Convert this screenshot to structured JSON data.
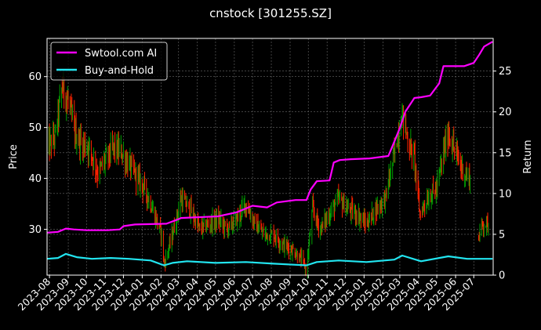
{
  "chart_data": {
    "type": "line",
    "title": "cnstock [301255.SZ]",
    "ylabel_left": "Price",
    "ylabel_right": "Return",
    "ylim_left": [
      21,
      67.5
    ],
    "ylim_right": [
      0,
      29
    ],
    "yticks_left": [
      30,
      40,
      50,
      60
    ],
    "yticks_right": [
      0,
      5,
      10,
      15,
      20,
      25
    ],
    "xlim": [
      "2023-07-28",
      "2025-08-02"
    ],
    "x_ticks": [
      "2023-08",
      "2023-09",
      "2023-10",
      "2023-11",
      "2023-12",
      "2024-01",
      "2024-02",
      "2024-03",
      "2024-04",
      "2024-05",
      "2024-06",
      "2024-07",
      "2024-08",
      "2024-09",
      "2024-10",
      "2024-11",
      "2024-12",
      "2025-01",
      "2025-02",
      "2025-03",
      "2025-04",
      "2025-05",
      "2025-06",
      "2025-07"
    ],
    "grid": true,
    "legend_position": "top-left",
    "colors": {
      "up": "#00a000",
      "down": "#ff2200",
      "ai": "#ff00ff",
      "hold": "#22e5f0",
      "grid": "#6a6a6a"
    },
    "price_path": [
      [
        "2023-07-28",
        46
      ],
      [
        "2023-08-10",
        48
      ],
      [
        "2023-08-22",
        58
      ],
      [
        "2023-09-01",
        55
      ],
      [
        "2023-09-12",
        49
      ],
      [
        "2023-09-22",
        47
      ],
      [
        "2023-10-06",
        46
      ],
      [
        "2023-10-20",
        41
      ],
      [
        "2023-11-03",
        44
      ],
      [
        "2023-11-15",
        46
      ],
      [
        "2023-11-28",
        45
      ],
      [
        "2023-12-08",
        43
      ],
      [
        "2023-12-20",
        41
      ],
      [
        "2024-01-05",
        38
      ],
      [
        "2024-01-18",
        34
      ],
      [
        "2024-02-02",
        29
      ],
      [
        "2024-02-06",
        23
      ],
      [
        "2024-02-20",
        29
      ],
      [
        "2024-03-05",
        36
      ],
      [
        "2024-03-20",
        34
      ],
      [
        "2024-04-05",
        30
      ],
      [
        "2024-04-20",
        31
      ],
      [
        "2024-05-05",
        32
      ],
      [
        "2024-05-20",
        30
      ],
      [
        "2024-06-05",
        32
      ],
      [
        "2024-06-20",
        35
      ],
      [
        "2024-07-05",
        31
      ],
      [
        "2024-07-20",
        29
      ],
      [
        "2024-08-05",
        29
      ],
      [
        "2024-08-20",
        27
      ],
      [
        "2024-09-05",
        26
      ],
      [
        "2024-09-20",
        24
      ],
      [
        "2024-09-28",
        22
      ],
      [
        "2024-10-08",
        34
      ],
      [
        "2024-10-20",
        30
      ],
      [
        "2024-11-05",
        33
      ],
      [
        "2024-11-20",
        36
      ],
      [
        "2024-12-05",
        34
      ],
      [
        "2024-12-20",
        33
      ],
      [
        "2025-01-05",
        31
      ],
      [
        "2025-01-20",
        34
      ],
      [
        "2025-02-05",
        36
      ],
      [
        "2025-02-20",
        45
      ],
      [
        "2025-03-05",
        53
      ],
      [
        "2025-03-15",
        47
      ],
      [
        "2025-03-25",
        44
      ],
      [
        "2025-04-03",
        33
      ],
      [
        "2025-04-15",
        36
      ],
      [
        "2025-05-01",
        38
      ],
      [
        "2025-05-12",
        45
      ],
      [
        "2025-05-20",
        49
      ],
      [
        "2025-06-01",
        45
      ],
      [
        "2025-06-15",
        41
      ],
      [
        "2025-06-25",
        40
      ],
      [
        "2025-06-28",
        null
      ],
      [
        "2025-07-08",
        28
      ],
      [
        "2025-07-15",
        31
      ],
      [
        "2025-07-25",
        31
      ]
    ],
    "series": [
      {
        "name": "Swtool.com AI",
        "values": [
          [
            "2023-07-28",
            5.2
          ],
          [
            "2023-08-15",
            5.3
          ],
          [
            "2023-08-28",
            5.7
          ],
          [
            "2023-09-10",
            5.6
          ],
          [
            "2023-10-01",
            5.5
          ],
          [
            "2023-11-05",
            5.5
          ],
          [
            "2023-11-25",
            5.6
          ],
          [
            "2023-12-01",
            6.0
          ],
          [
            "2023-12-20",
            6.2
          ],
          [
            "2024-02-10",
            6.3
          ],
          [
            "2024-02-28",
            6.8
          ],
          [
            "2024-03-05",
            7.0
          ],
          [
            "2024-05-05",
            7.2
          ],
          [
            "2024-06-05",
            7.7
          ],
          [
            "2024-07-01",
            8.5
          ],
          [
            "2024-07-25",
            8.3
          ],
          [
            "2024-08-10",
            8.9
          ],
          [
            "2024-09-10",
            9.2
          ],
          [
            "2024-09-28",
            9.2
          ],
          [
            "2024-10-05",
            10.5
          ],
          [
            "2024-10-15",
            11.5
          ],
          [
            "2024-11-05",
            11.6
          ],
          [
            "2024-11-12",
            13.8
          ],
          [
            "2024-11-22",
            14.1
          ],
          [
            "2024-12-10",
            14.2
          ],
          [
            "2025-01-10",
            14.3
          ],
          [
            "2025-02-10",
            14.6
          ],
          [
            "2025-02-18",
            16.0
          ],
          [
            "2025-03-01",
            18.0
          ],
          [
            "2025-03-10",
            20.0
          ],
          [
            "2025-03-25",
            21.7
          ],
          [
            "2025-04-05",
            21.8
          ],
          [
            "2025-04-20",
            22.0
          ],
          [
            "2025-05-05",
            23.5
          ],
          [
            "2025-05-12",
            25.6
          ],
          [
            "2025-06-15",
            25.6
          ],
          [
            "2025-07-01",
            26.0
          ],
          [
            "2025-07-10",
            27.0
          ],
          [
            "2025-07-18",
            28.0
          ],
          [
            "2025-08-01",
            28.6
          ]
        ]
      },
      {
        "name": "Buy-and-Hold",
        "values": [
          [
            "2023-07-28",
            2.0
          ],
          [
            "2023-08-15",
            2.1
          ],
          [
            "2023-08-28",
            2.6
          ],
          [
            "2023-09-15",
            2.2
          ],
          [
            "2023-10-10",
            2.0
          ],
          [
            "2023-11-10",
            2.1
          ],
          [
            "2023-12-10",
            2.0
          ],
          [
            "2024-01-15",
            1.8
          ],
          [
            "2024-02-06",
            1.2
          ],
          [
            "2024-02-20",
            1.5
          ],
          [
            "2024-03-15",
            1.7
          ],
          [
            "2024-05-01",
            1.5
          ],
          [
            "2024-06-20",
            1.6
          ],
          [
            "2024-08-05",
            1.4
          ],
          [
            "2024-09-28",
            1.2
          ],
          [
            "2024-10-15",
            1.6
          ],
          [
            "2024-11-20",
            1.8
          ],
          [
            "2025-01-05",
            1.6
          ],
          [
            "2025-02-20",
            1.9
          ],
          [
            "2025-03-05",
            2.4
          ],
          [
            "2025-04-05",
            1.7
          ],
          [
            "2025-05-20",
            2.3
          ],
          [
            "2025-06-20",
            2.0
          ],
          [
            "2025-08-01",
            2.0
          ]
        ]
      }
    ]
  }
}
